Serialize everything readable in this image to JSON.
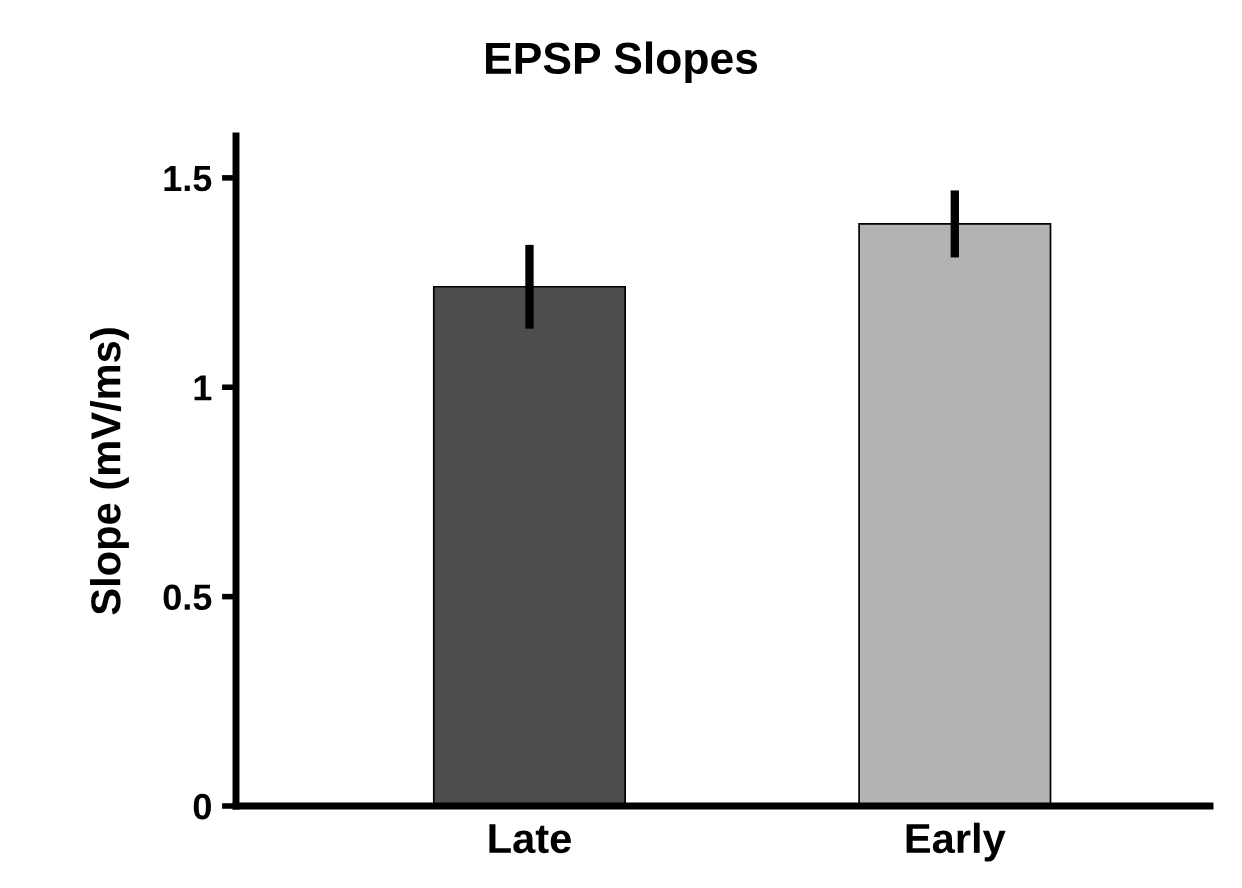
{
  "chart_data": {
    "type": "bar",
    "title": "EPSP Slopes",
    "ylabel": "Slope (mV/ms)",
    "categories": [
      "Late",
      "Early"
    ],
    "values": [
      1.24,
      1.39
    ],
    "colors": [
      "#4d4d4d",
      "#b3b3b3"
    ],
    "errors": [
      0.1,
      0.08
    ],
    "ylim": [
      0,
      1.6
    ],
    "yticks": [
      0,
      0.5,
      1,
      1.5
    ],
    "grid": false
  }
}
